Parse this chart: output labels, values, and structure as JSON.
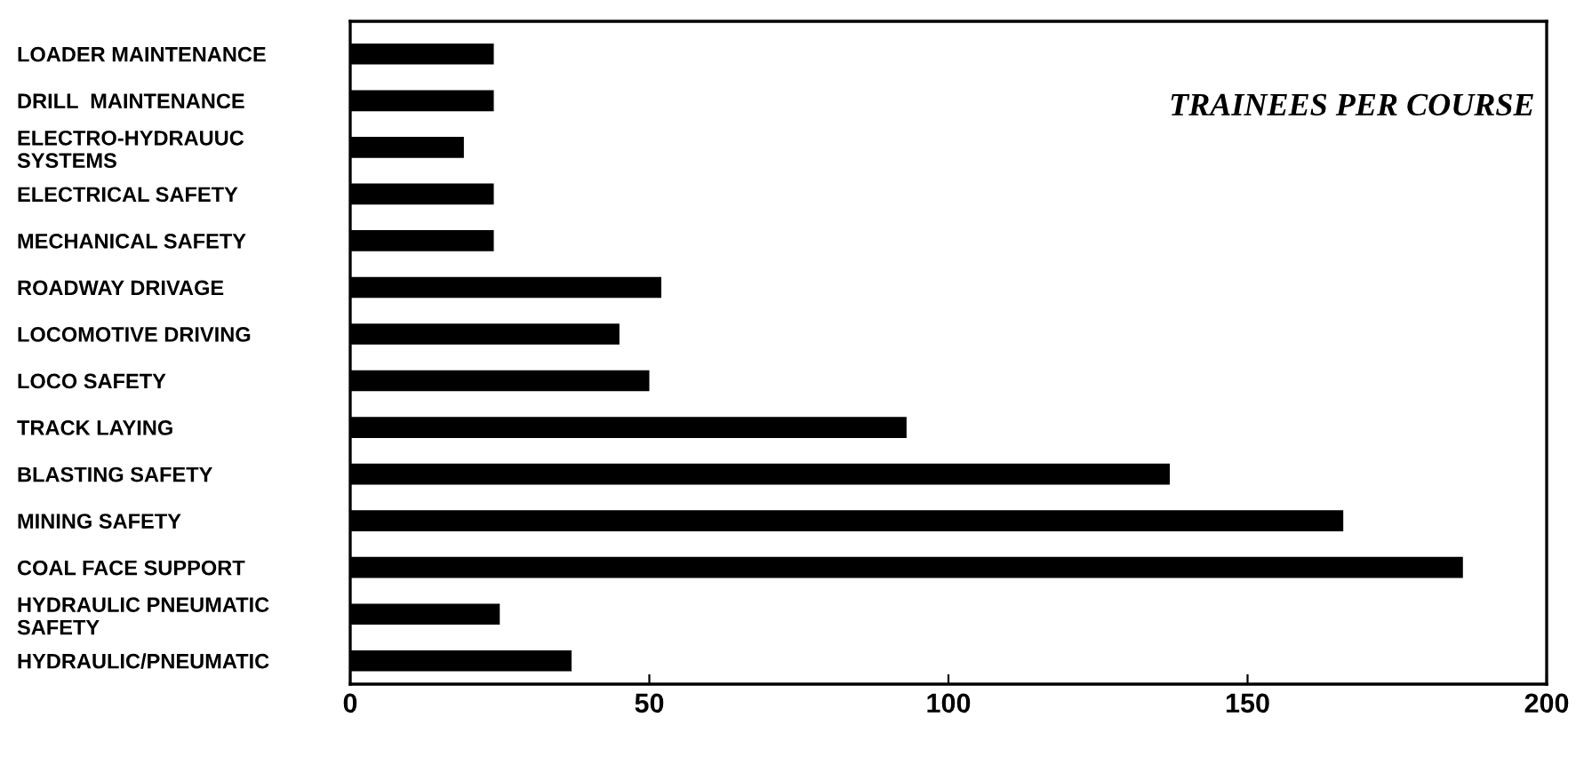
{
  "chart_data": {
    "type": "bar",
    "orientation": "horizontal",
    "title": "TRAINEES PER COURSE",
    "categories": [
      "LOADER MAINTENANCE",
      "DRILL  MAINTENANCE",
      "ELECTRO-HYDRAUUC\nSYSTEMS",
      "ELECTRICAL SAFETY",
      "MECHANICAL SAFETY",
      "ROADWAY DRIVAGE",
      "LOCOMOTIVE DRIVING",
      "LOCO SAFETY",
      "TRACK LAYING",
      "BLASTING SAFETY",
      "MINING SAFETY",
      "COAL FACE SUPPORT",
      "HYDRAULIC PNEUMATIC\nSAFETY",
      "HYDRAULIC/PNEUMATIC"
    ],
    "values": [
      24,
      24,
      19,
      24,
      24,
      52,
      45,
      50,
      93,
      137,
      166,
      186,
      25,
      37
    ],
    "color": "#000000",
    "xlim": [
      0,
      200
    ],
    "xticks": [
      0,
      50,
      100,
      150,
      200
    ],
    "grid": false,
    "legend": false
  }
}
